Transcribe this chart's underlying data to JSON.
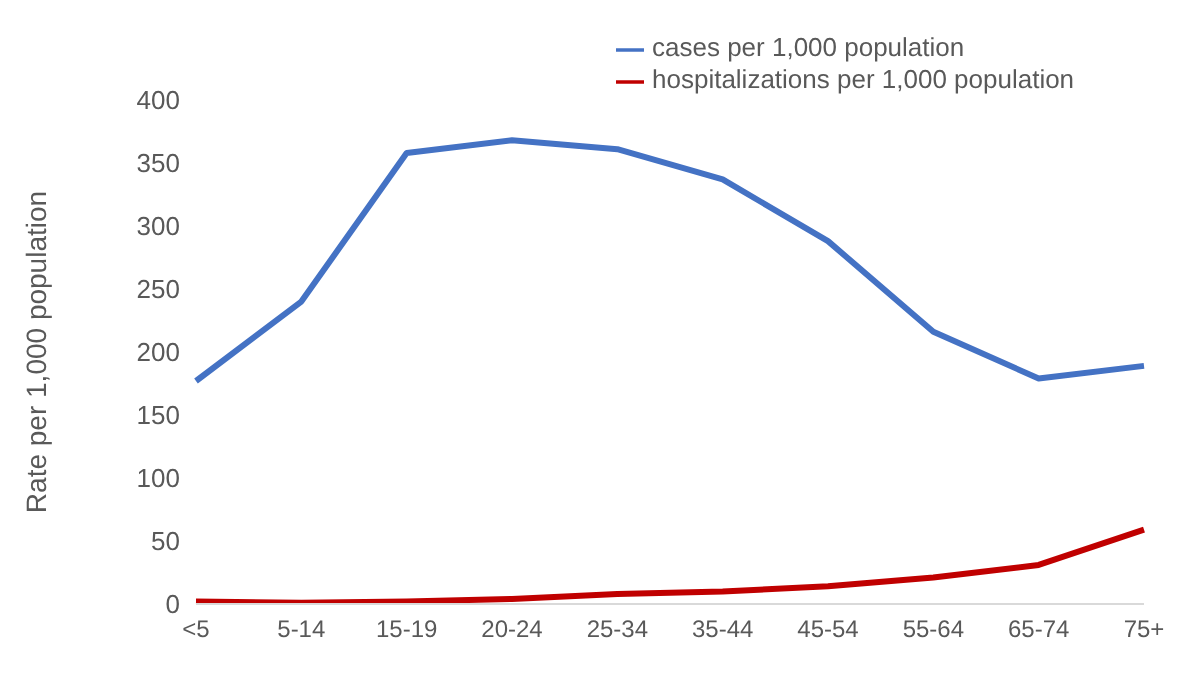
{
  "chart_data": {
    "type": "line",
    "ylabel": "Rate per 1,000 population",
    "categories": [
      "<5",
      "5-14",
      "15-19",
      "20-24",
      "25-34",
      "35-44",
      "45-54",
      "55-64",
      "65-74",
      "75+"
    ],
    "series": [
      {
        "name": "cases per 1,000 population",
        "color": "#4472c4",
        "values": [
          177,
          240,
          358,
          368,
          361,
          337,
          288,
          216,
          179,
          189
        ]
      },
      {
        "name": "hospitalizations per 1,000 population",
        "color": "#c00000",
        "values": [
          2,
          1,
          2,
          4,
          8,
          10,
          14,
          21,
          31,
          59
        ]
      }
    ],
    "ylim": [
      0,
      400
    ],
    "yticks": [
      0,
      50,
      100,
      150,
      200,
      250,
      300,
      350,
      400
    ],
    "grid": false,
    "legend": "top right",
    "marker": "none",
    "line_style": "solid"
  }
}
